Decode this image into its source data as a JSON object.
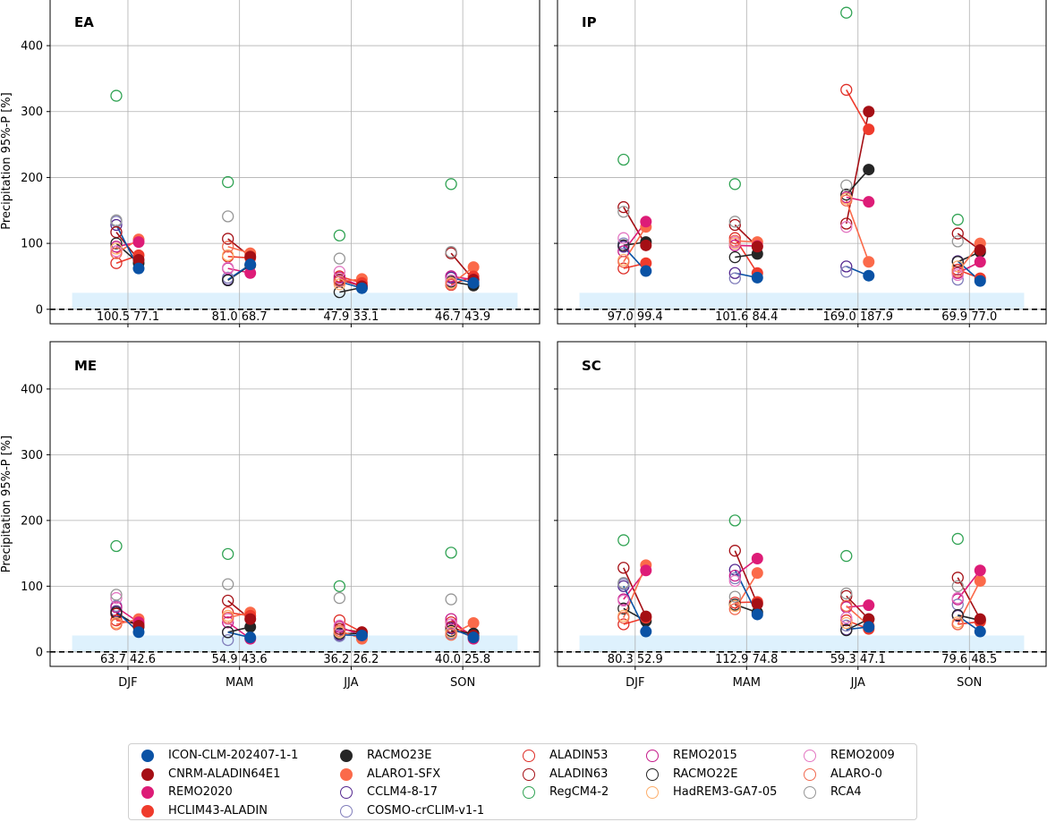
{
  "chart_data": {
    "type": "scatter",
    "ylabel": "Precipitation 95%-P [%]",
    "ylim": [
      -22,
      472
    ],
    "yticks": [
      0,
      100,
      200,
      300,
      400
    ],
    "categories": [
      "DJF",
      "MAM",
      "JJA",
      "SON"
    ],
    "grid": true,
    "reference_line_y": 0,
    "shaded_band_y": [
      0,
      25
    ],
    "legend_position": "bottom",
    "series": [
      {
        "name": "ICON-CLM-202407-1-1",
        "marker": "filled",
        "color": "#0a52a5",
        "group": "new"
      },
      {
        "name": "CNRM-ALADIN64E1",
        "marker": "filled",
        "color": "#a50f15",
        "group": "new"
      },
      {
        "name": "REMO2020",
        "marker": "filled",
        "color": "#dd1c77",
        "group": "new"
      },
      {
        "name": "HCLIM43-ALADIN",
        "marker": "filled",
        "color": "#ef3b2c",
        "group": "new"
      },
      {
        "name": "RACMO23E",
        "marker": "filled",
        "color": "#252525",
        "group": "new"
      },
      {
        "name": "ALARO1-SFX",
        "marker": "filled",
        "color": "#fb6a4a",
        "group": "new"
      },
      {
        "name": "CCLM4-8-17",
        "marker": "open",
        "color": "#54278f",
        "group": "old"
      },
      {
        "name": "COSMO-crCLIM-v1-1",
        "marker": "open",
        "color": "#807dba",
        "group": "old"
      },
      {
        "name": "ALADIN53",
        "marker": "open",
        "color": "#de2d26",
        "group": "old"
      },
      {
        "name": "ALADIN63",
        "marker": "open",
        "color": "#a50f15",
        "group": "old"
      },
      {
        "name": "RegCM4-2",
        "marker": "open",
        "color": "#31a354",
        "group": "old"
      },
      {
        "name": "REMO2015",
        "marker": "open",
        "color": "#c51b8a",
        "group": "old"
      },
      {
        "name": "RACMO22E",
        "marker": "open",
        "color": "#252525",
        "group": "old"
      },
      {
        "name": "HadREM3-GA7-05",
        "marker": "open",
        "color": "#fdae6b",
        "group": "old"
      },
      {
        "name": "REMO2009",
        "marker": "open",
        "color": "#e377c2",
        "group": "old"
      },
      {
        "name": "ALARO-0",
        "marker": "open",
        "color": "#f16a50",
        "group": "old"
      },
      {
        "name": "RCA4",
        "marker": "open",
        "color": "#969696",
        "group": "old"
      }
    ],
    "panels": [
      {
        "title": "EA",
        "annotations": [
          [
            "100.5",
            "77.1"
          ],
          [
            "81.0",
            "68.7"
          ],
          [
            "47.9",
            "33.1"
          ],
          [
            "46.7",
            "43.9"
          ]
        ],
        "seasons": [
          {
            "new": {
              "ICON-CLM-202407-1-1": 62,
              "CNRM-ALADIN64E1": 75,
              "REMO2020": 102,
              "HCLIM43-ALADIN": 82,
              "RACMO23E": 70,
              "ALARO1-SFX": 106
            },
            "old": {
              "CCLM4-8-17": 128,
              "COSMO-crCLIM-v1-1": 133,
              "ALADIN53": 70,
              "ALADIN63": 117,
              "RegCM4-2": 324,
              "REMO2015": 95,
              "RACMO22E": 100,
              "HadREM3-GA7-05": 92,
              "REMO2009": 88,
              "ALARO-0": 85,
              "RCA4": 135
            }
          },
          {
            "new": {
              "ICON-CLM-202407-1-1": 68,
              "CNRM-ALADIN64E1": 80,
              "REMO2020": 55,
              "HCLIM43-ALADIN": 78,
              "RACMO23E": 67,
              "ALARO1-SFX": 85
            },
            "old": {
              "CCLM4-8-17": 45,
              "COSMO-crCLIM-v1-1": 48,
              "ALADIN53": 80,
              "ALADIN63": 107,
              "RegCM4-2": 193,
              "REMO2015": 62,
              "RACMO22E": 44,
              "HadREM3-GA7-05": 82,
              "REMO2009": 63,
              "ALARO-0": 95,
              "RCA4": 141
            }
          },
          {
            "new": {
              "ICON-CLM-202407-1-1": 32,
              "CNRM-ALADIN64E1": 35,
              "REMO2020": 35,
              "HCLIM43-ALADIN": 40,
              "RACMO23E": 33,
              "ALARO1-SFX": 46
            },
            "old": {
              "CCLM4-8-17": 42,
              "COSMO-crCLIM-v1-1": 44,
              "ALADIN53": 50,
              "ALADIN63": 45,
              "RegCM4-2": 112,
              "REMO2015": 48,
              "RACMO22E": 26,
              "HadREM3-GA7-05": 38,
              "REMO2009": 57,
              "ALARO-0": 42,
              "RCA4": 77
            }
          },
          {
            "new": {
              "ICON-CLM-202407-1-1": 40,
              "CNRM-ALADIN64E1": 45,
              "REMO2020": 45,
              "HCLIM43-ALADIN": 50,
              "RACMO23E": 36,
              "ALARO1-SFX": 64
            },
            "old": {
              "CCLM4-8-17": 48,
              "COSMO-crCLIM-v1-1": 50,
              "ALADIN53": 37,
              "ALADIN63": 85,
              "RegCM4-2": 190,
              "REMO2015": 50,
              "RACMO22E": 42,
              "HadREM3-GA7-05": 40,
              "REMO2009": 44,
              "ALARO-0": 38,
              "RCA4": 87
            }
          }
        ]
      },
      {
        "title": "IP",
        "annotations": [
          [
            "97.0",
            "99.4"
          ],
          [
            "101.6",
            "84.4"
          ],
          [
            "169.0",
            "187.9"
          ],
          [
            "69.9",
            "77.0"
          ]
        ],
        "seasons": [
          {
            "new": {
              "ICON-CLM-202407-1-1": 58,
              "CNRM-ALADIN64E1": 97,
              "REMO2020": 133,
              "HCLIM43-ALADIN": 70,
              "RACMO23E": 102,
              "ALARO1-SFX": 125
            },
            "old": {
              "CCLM4-8-17": 95,
              "COSMO-crCLIM-v1-1": 100,
              "ALADIN53": 62,
              "ALADIN63": 155,
              "RegCM4-2": 227,
              "REMO2015": 88,
              "RACMO22E": 97,
              "HadREM3-GA7-05": 75,
              "REMO2009": 108,
              "ALARO-0": 72,
              "RCA4": 148
            }
          },
          {
            "new": {
              "ICON-CLM-202407-1-1": 48,
              "CNRM-ALADIN64E1": 95,
              "REMO2020": 96,
              "HCLIM43-ALADIN": 55,
              "RACMO23E": 84,
              "ALARO1-SFX": 102
            },
            "old": {
              "CCLM4-8-17": 55,
              "COSMO-crCLIM-v1-1": 47,
              "ALADIN53": 108,
              "ALADIN63": 128,
              "RegCM4-2": 190,
              "REMO2015": 97,
              "RACMO22E": 79,
              "HadREM3-GA7-05": 100,
              "REMO2009": 102,
              "ALARO-0": 104,
              "RCA4": 133
            }
          },
          {
            "new": {
              "ICON-CLM-202407-1-1": 51,
              "CNRM-ALADIN64E1": 300,
              "REMO2020": 163,
              "HCLIM43-ALADIN": 273,
              "RACMO23E": 212,
              "ALARO1-SFX": 72
            },
            "old": {
              "CCLM4-8-17": 65,
              "COSMO-crCLIM-v1-1": 57,
              "ALADIN53": 333,
              "ALADIN63": 130,
              "RegCM4-2": 450,
              "REMO2015": 170,
              "RACMO22E": 174,
              "HadREM3-GA7-05": 168,
              "REMO2009": 125,
              "ALARO-0": 165,
              "RCA4": 188
            }
          },
          {
            "new": {
              "ICON-CLM-202407-1-1": 43,
              "CNRM-ALADIN64E1": 90,
              "REMO2020": 72,
              "HCLIM43-ALADIN": 47,
              "RACMO23E": 87,
              "ALARO1-SFX": 100
            },
            "old": {
              "CCLM4-8-17": 73,
              "COSMO-crCLIM-v1-1": 45,
              "ALADIN53": 60,
              "ALADIN63": 115,
              "RegCM4-2": 136,
              "REMO2015": 55,
              "RACMO22E": 72,
              "HadREM3-GA7-05": 65,
              "REMO2009": 52,
              "ALARO-0": 57,
              "RCA4": 103
            }
          }
        ]
      },
      {
        "title": "ME",
        "annotations": [
          [
            "63.7",
            "42.6"
          ],
          [
            "54.9",
            "43.6"
          ],
          [
            "36.2",
            "26.2"
          ],
          [
            "40.0",
            "25.8"
          ]
        ],
        "seasons": [
          {
            "new": {
              "ICON-CLM-202407-1-1": 30,
              "CNRM-ALADIN64E1": 40,
              "REMO2020": 45,
              "HCLIM43-ALADIN": 42,
              "RACMO23E": 38,
              "ALARO1-SFX": 50
            },
            "old": {
              "CCLM4-8-17": 62,
              "COSMO-crCLIM-v1-1": 70,
              "ALADIN53": 48,
              "ALADIN63": 58,
              "RegCM4-2": 161,
              "REMO2015": 68,
              "RACMO22E": 60,
              "HadREM3-GA7-05": 44,
              "REMO2009": 82,
              "ALARO-0": 42,
              "RCA4": 87
            }
          },
          {
            "new": {
              "ICON-CLM-202407-1-1": 22,
              "CNRM-ALADIN64E1": 50,
              "REMO2020": 20,
              "HCLIM43-ALADIN": 55,
              "RACMO23E": 38,
              "ALARO1-SFX": 60
            },
            "old": {
              "CCLM4-8-17": 30,
              "COSMO-crCLIM-v1-1": 18,
              "ALADIN53": 60,
              "ALADIN63": 78,
              "RegCM4-2": 149,
              "REMO2015": 45,
              "RACMO22E": 30,
              "HadREM3-GA7-05": 55,
              "REMO2009": 50,
              "ALARO-0": 52,
              "RCA4": 103
            }
          },
          {
            "new": {
              "ICON-CLM-202407-1-1": 25,
              "CNRM-ALADIN64E1": 30,
              "REMO2020": 25,
              "HCLIM43-ALADIN": 30,
              "RACMO23E": 28,
              "ALARO1-SFX": 20
            },
            "old": {
              "CCLM4-8-17": 26,
              "COSMO-crCLIM-v1-1": 24,
              "ALADIN53": 48,
              "ALADIN63": 35,
              "RegCM4-2": 100,
              "REMO2015": 38,
              "RACMO22E": 28,
              "HadREM3-GA7-05": 30,
              "REMO2009": 40,
              "ALARO-0": 32,
              "RCA4": 82
            }
          },
          {
            "new": {
              "ICON-CLM-202407-1-1": 22,
              "CNRM-ALADIN64E1": 25,
              "REMO2020": 20,
              "HCLIM43-ALADIN": 24,
              "RACMO23E": 28,
              "ALARO1-SFX": 44
            },
            "old": {
              "CCLM4-8-17": 36,
              "COSMO-crCLIM-v1-1": 28,
              "ALADIN53": 45,
              "ALADIN63": 38,
              "RegCM4-2": 151,
              "REMO2015": 50,
              "RACMO22E": 32,
              "HadREM3-GA7-05": 30,
              "REMO2009": 42,
              "ALARO-0": 26,
              "RCA4": 80
            }
          }
        ]
      },
      {
        "title": "SC",
        "annotations": [
          [
            "80.3",
            "52.9"
          ],
          [
            "112.9",
            "74.8"
          ],
          [
            "59.3",
            "47.1"
          ],
          [
            "79.6",
            "48.5"
          ]
        ],
        "seasons": [
          {
            "new": {
              "ICON-CLM-202407-1-1": 31,
              "CNRM-ALADIN64E1": 54,
              "REMO2020": 124,
              "HCLIM43-ALADIN": 52,
              "RACMO23E": 47,
              "ALARO1-SFX": 132
            },
            "old": {
              "CCLM4-8-17": 100,
              "COSMO-crCLIM-v1-1": 103,
              "ALADIN53": 42,
              "ALADIN63": 128,
              "RegCM4-2": 170,
              "REMO2015": 80,
              "RACMO22E": 66,
              "HadREM3-GA7-05": 55,
              "REMO2009": 78,
              "ALARO-0": 52,
              "RCA4": 105
            }
          },
          {
            "new": {
              "ICON-CLM-202407-1-1": 57,
              "CNRM-ALADIN64E1": 73,
              "REMO2020": 142,
              "HCLIM43-ALADIN": 76,
              "RACMO23E": 60,
              "ALARO1-SFX": 120
            },
            "old": {
              "CCLM4-8-17": 125,
              "COSMO-crCLIM-v1-1": 112,
              "ALADIN53": 75,
              "ALADIN63": 154,
              "RegCM4-2": 200,
              "REMO2015": 116,
              "RACMO22E": 72,
              "HadREM3-GA7-05": 70,
              "REMO2009": 108,
              "ALARO-0": 65,
              "RCA4": 84
            }
          },
          {
            "new": {
              "ICON-CLM-202407-1-1": 38,
              "CNRM-ALADIN64E1": 50,
              "REMO2020": 71,
              "HCLIM43-ALADIN": 35,
              "RACMO23E": 50,
              "ALARO1-SFX": 40
            },
            "old": {
              "CCLM4-8-17": 34,
              "COSMO-crCLIM-v1-1": 40,
              "ALADIN53": 48,
              "ALADIN63": 85,
              "RegCM4-2": 146,
              "REMO2015": 68,
              "RACMO22E": 33,
              "HadREM3-GA7-05": 44,
              "REMO2009": 52,
              "ALARO-0": 70,
              "RCA4": 89
            }
          },
          {
            "new": {
              "ICON-CLM-202407-1-1": 31,
              "CNRM-ALADIN64E1": 50,
              "REMO2020": 124,
              "HCLIM43-ALADIN": 46,
              "RACMO23E": 48,
              "ALARO1-SFX": 108
            },
            "old": {
              "CCLM4-8-17": 55,
              "COSMO-crCLIM-v1-1": 72,
              "ALADIN53": 42,
              "ALADIN63": 113,
              "RegCM4-2": 172,
              "REMO2015": 80,
              "RACMO22E": 56,
              "HadREM3-GA7-05": 45,
              "REMO2009": 82,
              "ALARO-0": 42,
              "RCA4": 100
            }
          }
        ]
      }
    ]
  }
}
